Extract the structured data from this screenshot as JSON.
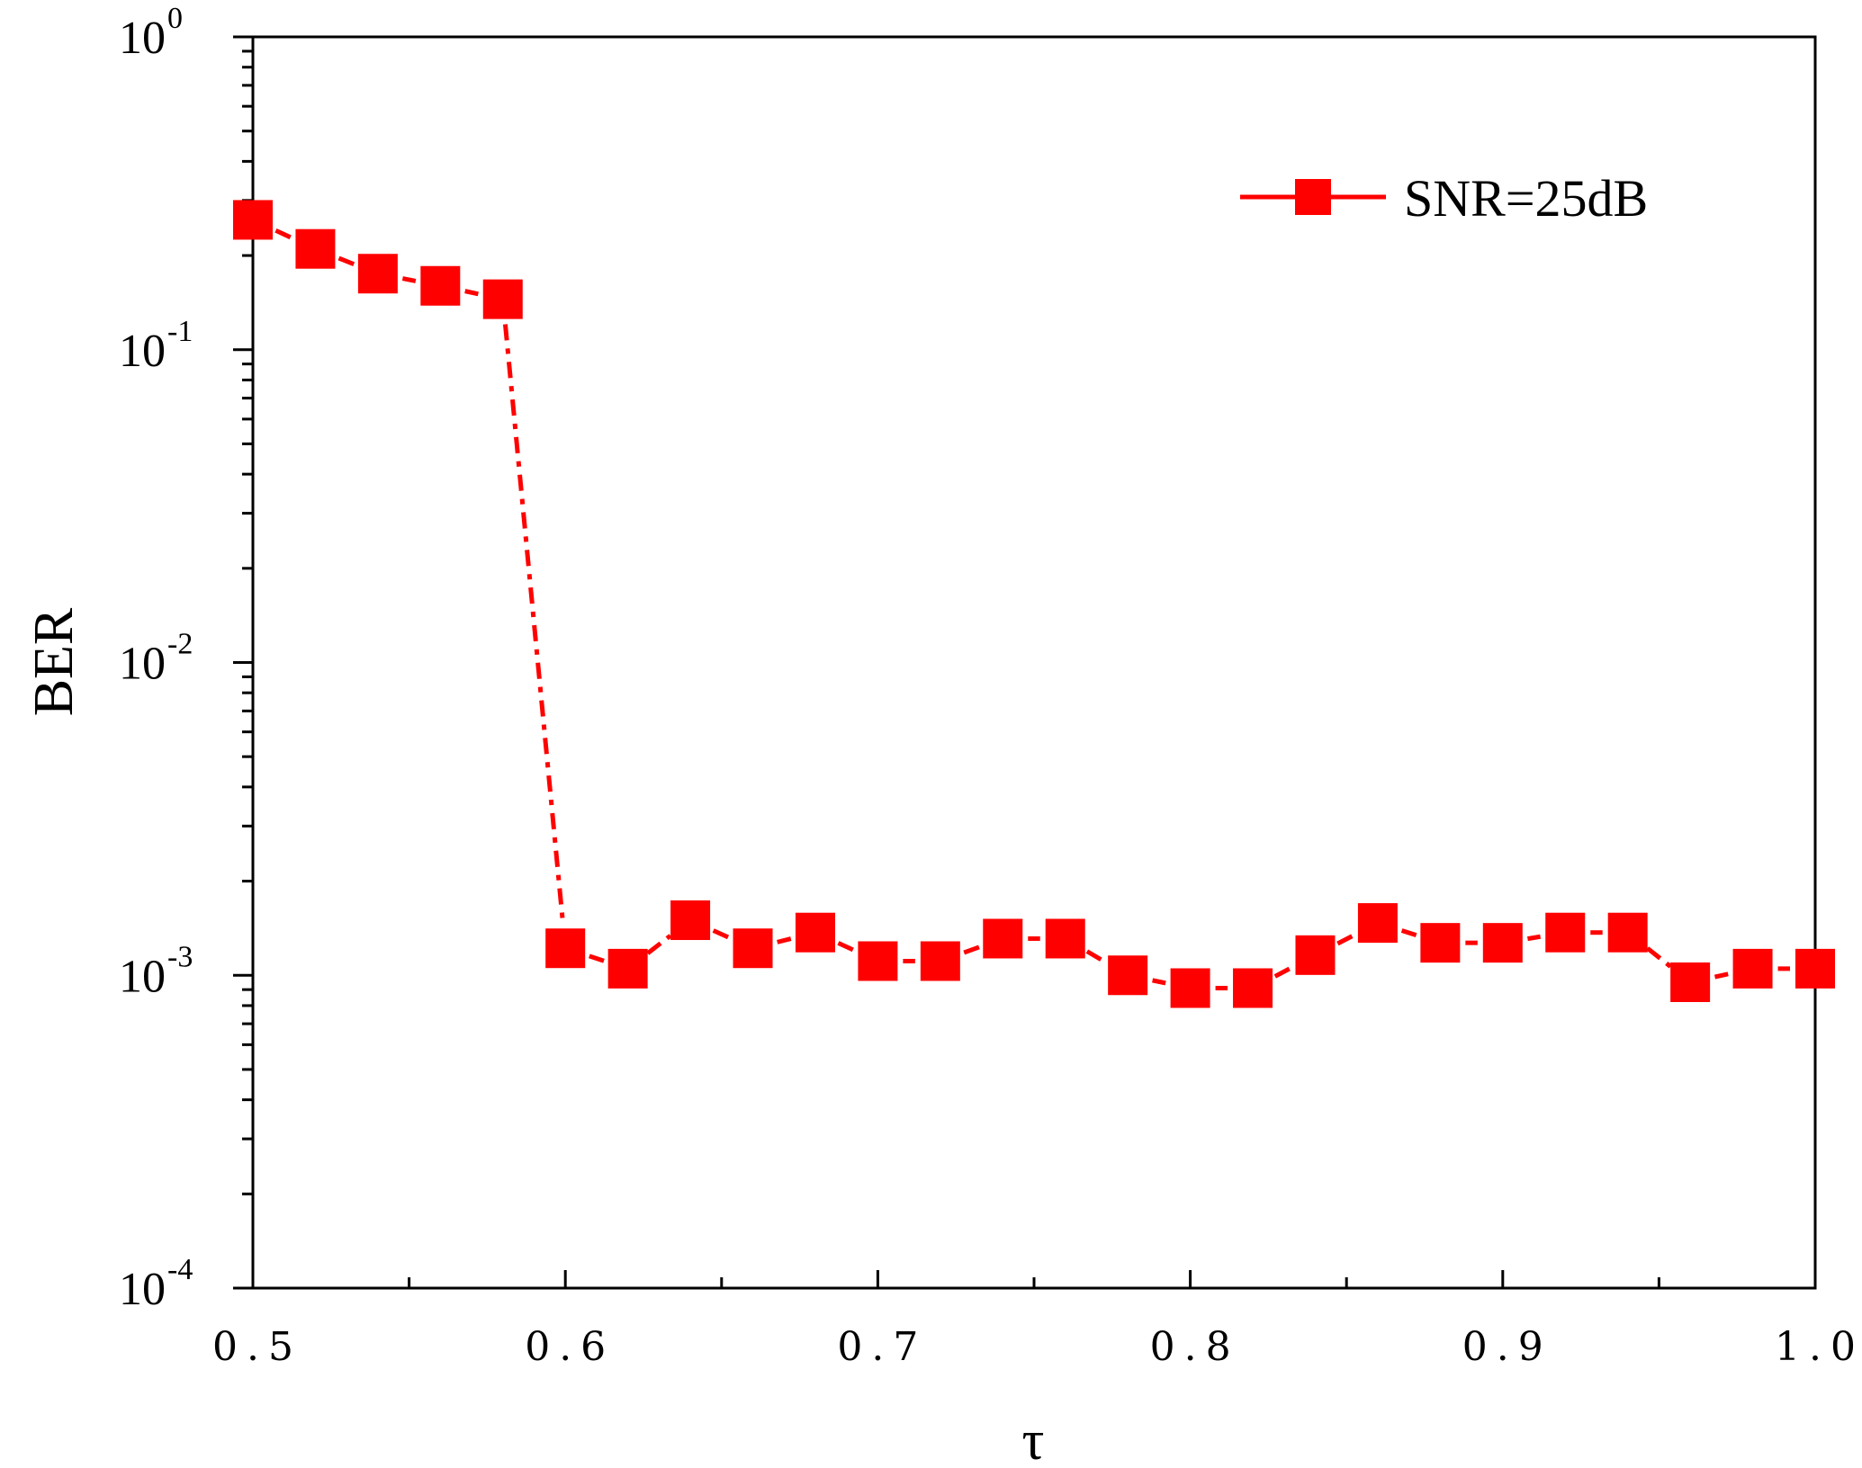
{
  "chart_data": {
    "type": "line",
    "xlabel": "τ",
    "ylabel": "BER",
    "xlim": [
      0.5,
      1.0
    ],
    "ylim": [
      0.0001,
      1
    ],
    "yscale": "log",
    "grid": false,
    "legend_position": "top-right",
    "x_ticks": [
      "0.5",
      "0.6",
      "0.7",
      "0.8",
      "0.9",
      "1.0"
    ],
    "y_ticks": [
      {
        "base": "10",
        "exp": "-4",
        "value": 0.0001
      },
      {
        "base": "10",
        "exp": "-3",
        "value": 0.001
      },
      {
        "base": "10",
        "exp": "-2",
        "value": 0.01
      },
      {
        "base": "10",
        "exp": "-1",
        "value": 0.1
      },
      {
        "base": "10",
        "exp": "0",
        "value": 1
      }
    ],
    "series": [
      {
        "name": "SNR=25dB",
        "color": "#ff0000",
        "line_style": "dash-dot",
        "marker": "square",
        "x": [
          0.5,
          0.52,
          0.54,
          0.56,
          0.58,
          0.6,
          0.62,
          0.64,
          0.66,
          0.68,
          0.7,
          0.72,
          0.74,
          0.76,
          0.78,
          0.8,
          0.82,
          0.84,
          0.86,
          0.88,
          0.9,
          0.92,
          0.94,
          0.96,
          0.98,
          1.0
        ],
        "y": [
          0.26,
          0.21,
          0.175,
          0.16,
          0.145,
          0.00122,
          0.00105,
          0.0015,
          0.00122,
          0.00137,
          0.00111,
          0.00111,
          0.00131,
          0.00131,
          0.001,
          0.00091,
          0.00091,
          0.00116,
          0.00147,
          0.00127,
          0.00127,
          0.00137,
          0.00137,
          0.00095,
          0.00105,
          0.00105
        ]
      }
    ]
  }
}
